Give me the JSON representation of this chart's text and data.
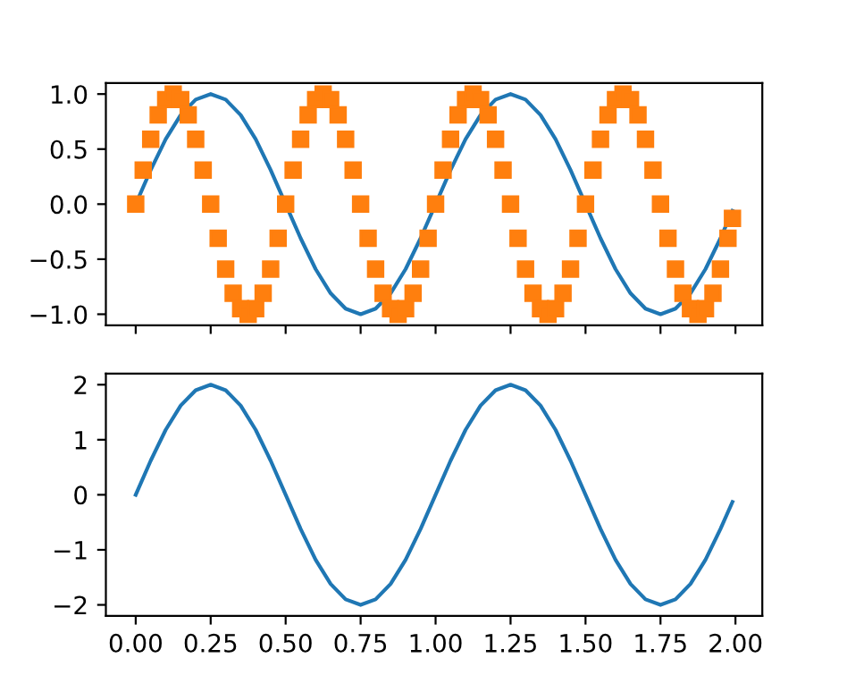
{
  "chart_data": [
    {
      "type": "line",
      "tick_labels": "y",
      "legend": false,
      "grid": false,
      "xlim": [
        -0.0995,
        2.0895
      ],
      "ylim": [
        -1.1,
        1.1
      ],
      "xticks": [
        {
          "value": 0,
          "label": null
        },
        {
          "value": 0.25,
          "label": null
        },
        {
          "value": 0.5,
          "label": null
        },
        {
          "value": 0.75,
          "label": null
        },
        {
          "value": 1,
          "label": null
        },
        {
          "value": 1.25,
          "label": null
        },
        {
          "value": 1.5,
          "label": null
        },
        {
          "value": 1.75,
          "label": null
        },
        {
          "value": 2,
          "label": null
        }
      ],
      "yticks": [
        {
          "value": -1,
          "label": "−1.0"
        },
        {
          "value": -0.5,
          "label": "−0.5"
        },
        {
          "value": 0,
          "label": "0.0"
        },
        {
          "value": 0.5,
          "label": "0.5"
        },
        {
          "value": 1,
          "label": "1.0"
        }
      ],
      "series": [
        {
          "color": "#1f77b4",
          "x": [
            0,
            0.05,
            0.1,
            0.15,
            0.2,
            0.25,
            0.3,
            0.35,
            0.4,
            0.45,
            0.5,
            0.55,
            0.6,
            0.65,
            0.7,
            0.75,
            0.8,
            0.85,
            0.9,
            0.95,
            1,
            1.05,
            1.1,
            1.15,
            1.2,
            1.25,
            1.3,
            1.35,
            1.4,
            1.45,
            1.5,
            1.55,
            1.6,
            1.65,
            1.7,
            1.75,
            1.8,
            1.85,
            1.9,
            1.95,
            1.99
          ],
          "values": [
            0,
            0.31,
            0.59,
            0.81,
            0.95,
            1,
            0.95,
            0.81,
            0.59,
            0.31,
            0,
            -0.31,
            -0.59,
            -0.81,
            -0.95,
            -1,
            -0.95,
            -0.81,
            -0.59,
            -0.31,
            0,
            0.31,
            0.59,
            0.81,
            0.95,
            1,
            0.95,
            0.81,
            0.59,
            0.31,
            0,
            -0.31,
            -0.59,
            -0.81,
            -0.95,
            -1,
            -0.95,
            -0.81,
            -0.59,
            -0.31,
            -0.06
          ]
        },
        {
          "type": "scatter",
          "marker": "square",
          "color": "#ff7f0e",
          "x": [
            0,
            0.025,
            0.05,
            0.075,
            0.1,
            0.125,
            0.15,
            0.175,
            0.2,
            0.225,
            0.25,
            0.275,
            0.3,
            0.325,
            0.35,
            0.375,
            0.4,
            0.425,
            0.45,
            0.475,
            0.5,
            0.525,
            0.55,
            0.575,
            0.6,
            0.625,
            0.65,
            0.675,
            0.7,
            0.725,
            0.75,
            0.775,
            0.8,
            0.825,
            0.85,
            0.875,
            0.9,
            0.925,
            0.95,
            0.975,
            1,
            1.025,
            1.05,
            1.075,
            1.1,
            1.125,
            1.15,
            1.175,
            1.2,
            1.225,
            1.25,
            1.275,
            1.3,
            1.325,
            1.35,
            1.375,
            1.4,
            1.425,
            1.45,
            1.475,
            1.5,
            1.525,
            1.55,
            1.575,
            1.6,
            1.625,
            1.65,
            1.675,
            1.7,
            1.725,
            1.75,
            1.775,
            1.8,
            1.825,
            1.85,
            1.875,
            1.9,
            1.925,
            1.95,
            1.975,
            1.99
          ],
          "values": [
            0,
            0.31,
            0.59,
            0.81,
            0.95,
            1,
            0.95,
            0.81,
            0.59,
            0.31,
            0,
            -0.31,
            -0.59,
            -0.81,
            -0.95,
            -1,
            -0.95,
            -0.81,
            -0.59,
            -0.31,
            0,
            0.31,
            0.59,
            0.81,
            0.95,
            1,
            0.95,
            0.81,
            0.59,
            0.31,
            0,
            -0.31,
            -0.59,
            -0.81,
            -0.95,
            -1,
            -0.95,
            -0.81,
            -0.59,
            -0.31,
            0,
            0.31,
            0.59,
            0.81,
            0.95,
            1,
            0.95,
            0.81,
            0.59,
            0.31,
            0,
            -0.31,
            -0.59,
            -0.81,
            -0.95,
            -1,
            -0.95,
            -0.81,
            -0.59,
            -0.31,
            0,
            0.31,
            0.59,
            0.81,
            0.95,
            1,
            0.95,
            0.81,
            0.59,
            0.31,
            0,
            -0.31,
            -0.59,
            -0.81,
            -0.95,
            -1,
            -0.95,
            -0.81,
            -0.59,
            -0.31,
            -0.13
          ]
        }
      ]
    },
    {
      "type": "line",
      "legend": false,
      "grid": false,
      "xlim": [
        -0.0995,
        2.0895
      ],
      "ylim": [
        -2.2,
        2.2
      ],
      "xticks": [
        {
          "value": 0,
          "label": "0.00"
        },
        {
          "value": 0.25,
          "label": "0.25"
        },
        {
          "value": 0.5,
          "label": "0.50"
        },
        {
          "value": 0.75,
          "label": "0.75"
        },
        {
          "value": 1,
          "label": "1.00"
        },
        {
          "value": 1.25,
          "label": "1.25"
        },
        {
          "value": 1.5,
          "label": "1.50"
        },
        {
          "value": 1.75,
          "label": "1.75"
        },
        {
          "value": 2,
          "label": "2.00"
        }
      ],
      "yticks": [
        {
          "value": -2,
          "label": "−2"
        },
        {
          "value": -1,
          "label": "−1"
        },
        0,
        1,
        2
      ],
      "series": [
        {
          "color": "#1f77b4",
          "x": [
            0,
            0.05,
            0.1,
            0.15,
            0.2,
            0.25,
            0.3,
            0.35,
            0.4,
            0.45,
            0.5,
            0.55,
            0.6,
            0.65,
            0.7,
            0.75,
            0.8,
            0.85,
            0.9,
            0.95,
            1,
            1.05,
            1.1,
            1.15,
            1.2,
            1.25,
            1.3,
            1.35,
            1.4,
            1.45,
            1.5,
            1.55,
            1.6,
            1.65,
            1.7,
            1.75,
            1.8,
            1.85,
            1.9,
            1.95,
            1.99
          ],
          "values": [
            0,
            0.62,
            1.18,
            1.62,
            1.9,
            2,
            1.9,
            1.62,
            1.18,
            0.62,
            0,
            -0.62,
            -1.18,
            -1.62,
            -1.9,
            -2,
            -1.9,
            -1.62,
            -1.18,
            -0.62,
            0,
            0.62,
            1.18,
            1.62,
            1.9,
            2,
            1.9,
            1.62,
            1.18,
            0.62,
            0,
            -0.62,
            -1.18,
            -1.62,
            -1.9,
            -2,
            -1.9,
            -1.62,
            -1.18,
            -0.62,
            -0.13
          ]
        }
      ]
    }
  ]
}
